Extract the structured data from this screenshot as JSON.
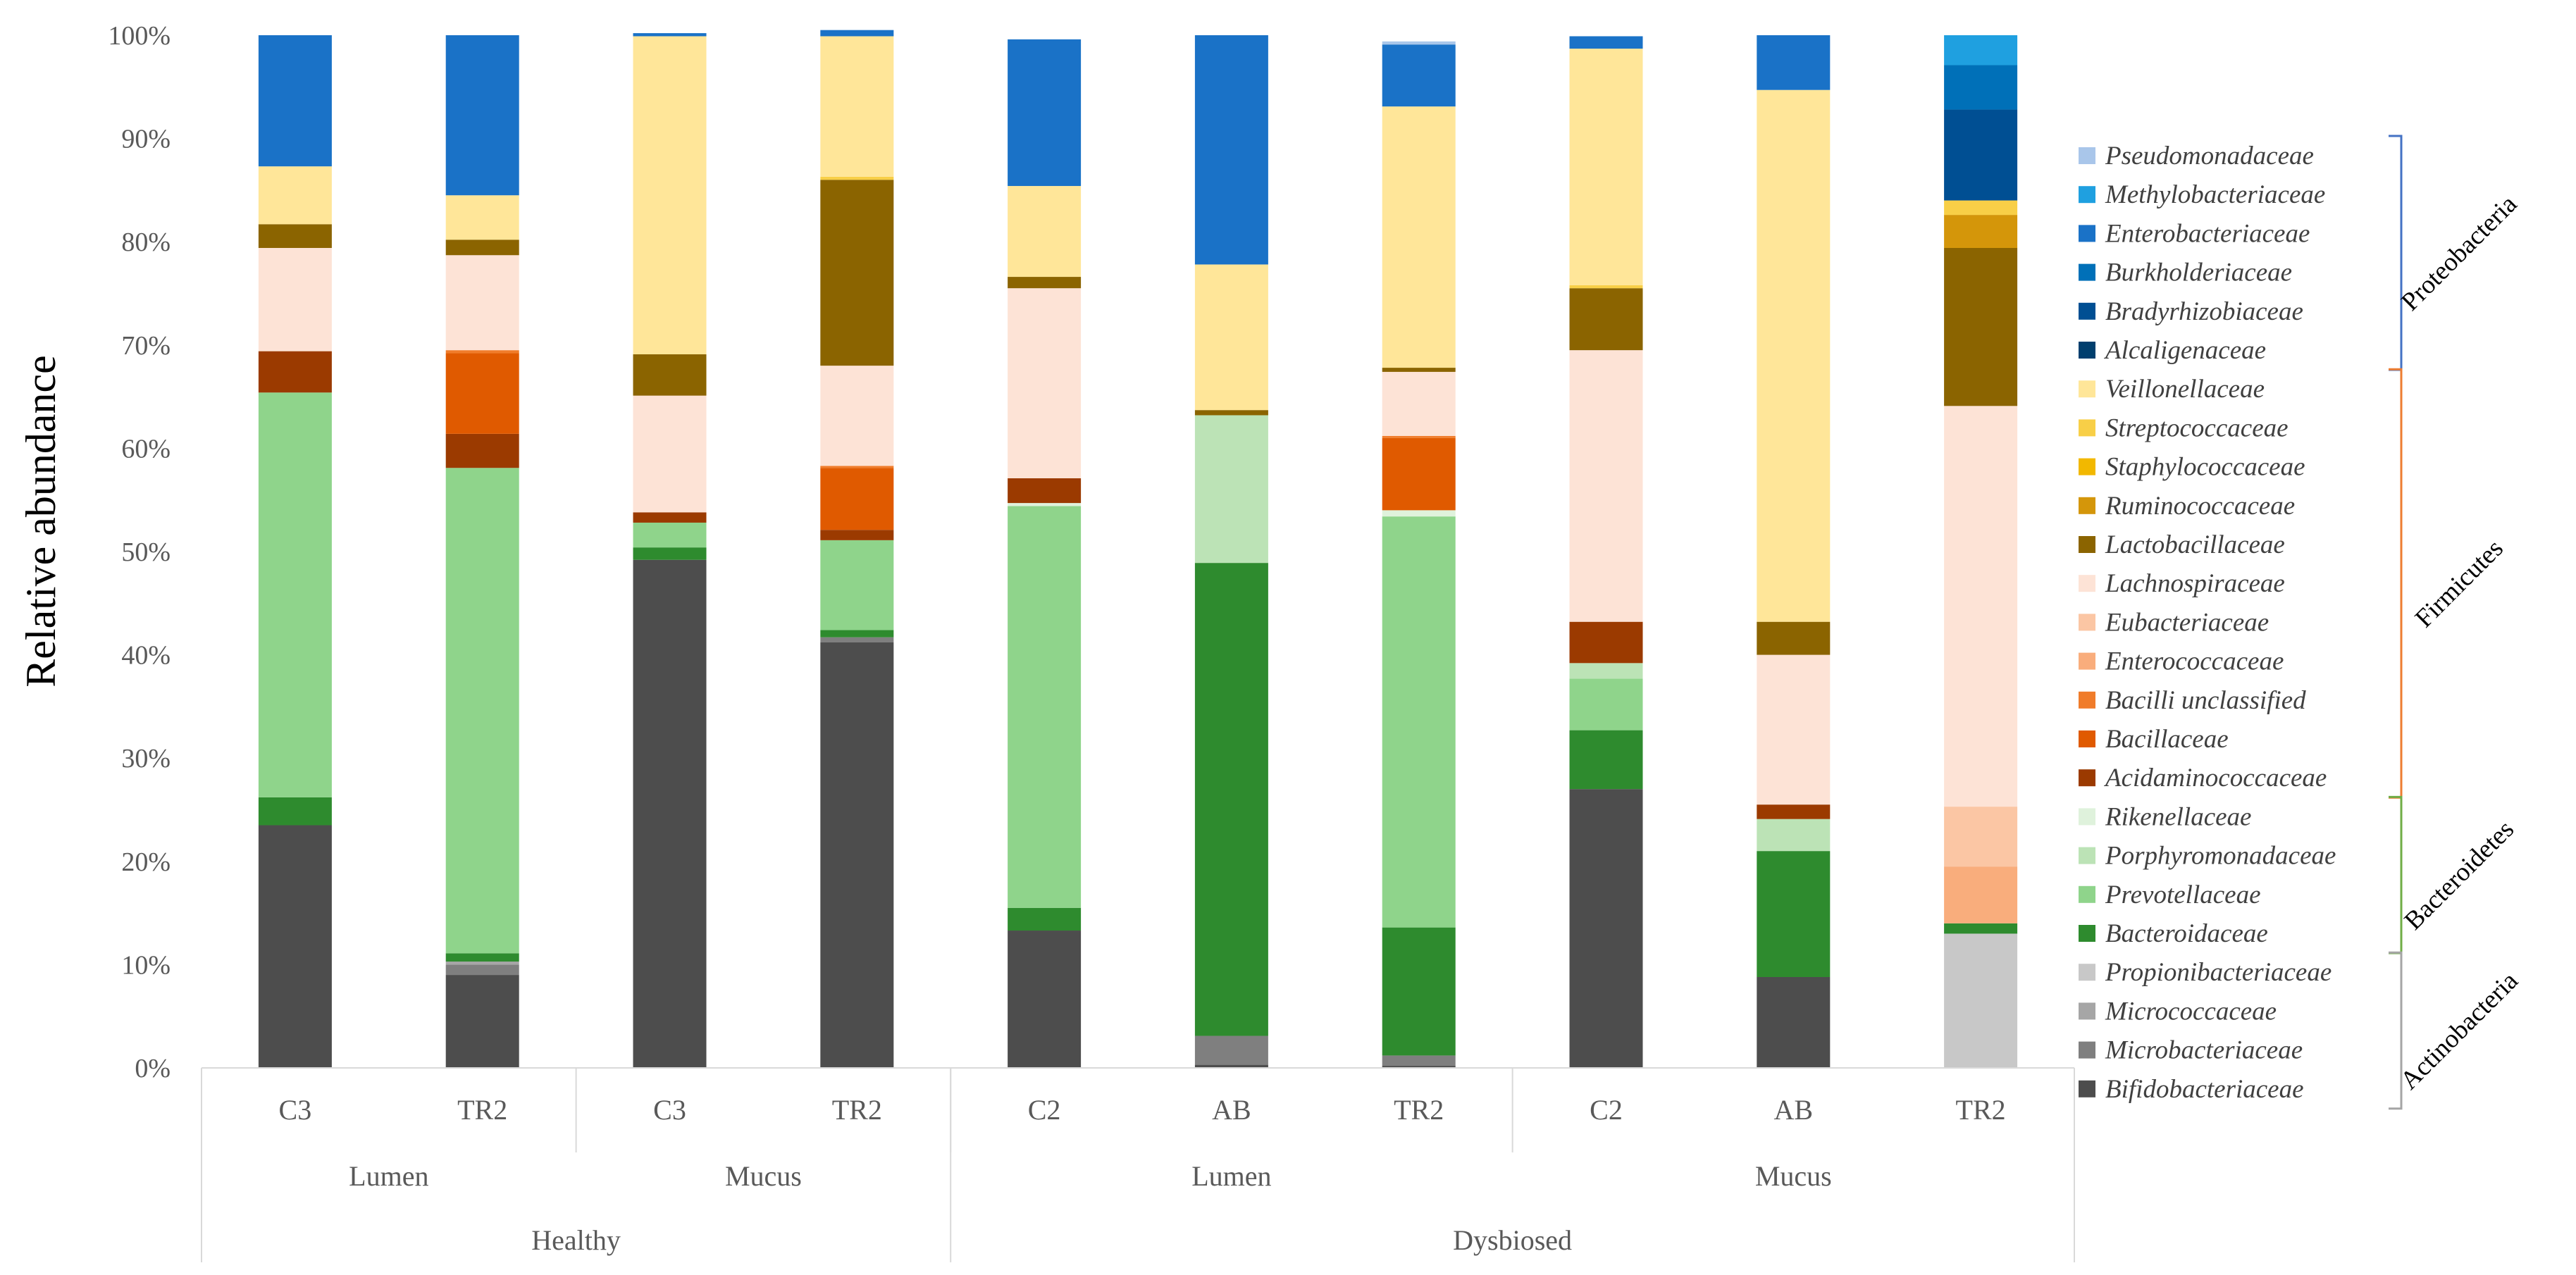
{
  "chart_data": {
    "type": "stacked-bar-100",
    "title": "",
    "ylabel": "Relative abundance",
    "xlabel": "",
    "ylim": [
      0,
      100
    ],
    "yticks": [
      "0%",
      "10%",
      "20%",
      "30%",
      "40%",
      "50%",
      "60%",
      "70%",
      "80%",
      "90%",
      "100%"
    ],
    "categories": [
      {
        "label": "C3",
        "site": "Lumen",
        "state": "Healthy"
      },
      {
        "label": "TR2",
        "site": "Lumen",
        "state": "Healthy"
      },
      {
        "label": "C3",
        "site": "Mucus",
        "state": "Healthy"
      },
      {
        "label": "TR2",
        "site": "Mucus",
        "state": "Healthy"
      },
      {
        "label": "C2",
        "site": "Lumen",
        "state": "Dysbiosed"
      },
      {
        "label": "AB",
        "site": "Lumen",
        "state": "Dysbiosed"
      },
      {
        "label": "TR2",
        "site": "Lumen",
        "state": "Dysbiosed"
      },
      {
        "label": "C2",
        "site": "Mucus",
        "state": "Dysbiosed"
      },
      {
        "label": "AB",
        "site": "Mucus",
        "state": "Dysbiosed"
      },
      {
        "label": "TR2",
        "site": "Mucus",
        "state": "Dysbiosed"
      }
    ],
    "group_level1": [
      {
        "label": "Lumen",
        "span": 2
      },
      {
        "label": "Mucus",
        "span": 2
      },
      {
        "label": "Lumen",
        "span": 3
      },
      {
        "label": "Mucus",
        "span": 3
      }
    ],
    "group_level2": [
      {
        "label": "Healthy",
        "span": 4
      },
      {
        "label": "Dysbiosed",
        "span": 6
      }
    ],
    "series": [
      {
        "name": "Bifidobacteriaceae",
        "color": "#4d4d4d",
        "values": [
          23.5,
          9.0,
          49.2,
          41.2,
          13.3,
          0.3,
          0.2,
          27.0,
          8.8,
          0.0
        ]
      },
      {
        "name": "Microbacteriaceae",
        "color": "#7f7f7f",
        "values": [
          0.0,
          1.0,
          0.0,
          0.5,
          0.0,
          2.8,
          1.0,
          0.0,
          0.0,
          0.0
        ]
      },
      {
        "name": "Micrococcaceae",
        "color": "#a6a6a6",
        "values": [
          0.0,
          0.3,
          0.0,
          0.0,
          0.0,
          0.0,
          0.0,
          0.0,
          0.0,
          0.0
        ]
      },
      {
        "name": "Propionibacteriaceae",
        "color": "#c8c8c8",
        "values": [
          0.0,
          0.0,
          0.0,
          0.0,
          0.0,
          0.0,
          0.0,
          0.0,
          0.0,
          13.0
        ]
      },
      {
        "name": "Bacteroidaceae",
        "color": "#2e8b2e",
        "values": [
          2.7,
          0.8,
          1.2,
          0.7,
          2.2,
          45.8,
          12.4,
          5.7,
          12.2,
          1.0
        ]
      },
      {
        "name": "Prevotellaceae",
        "color": "#8fd48b",
        "values": [
          39.2,
          47.0,
          2.4,
          8.7,
          38.9,
          0.0,
          39.8,
          5.0,
          0.0,
          0.0
        ]
      },
      {
        "name": "Porphyromonadaceae",
        "color": "#bce3b6",
        "values": [
          0.0,
          0.0,
          0.0,
          0.0,
          0.0,
          14.3,
          0.0,
          1.5,
          3.1,
          0.0
        ]
      },
      {
        "name": "Rikenellaceae",
        "color": "#dff2dc",
        "values": [
          0.0,
          0.0,
          0.0,
          0.0,
          0.3,
          0.0,
          0.6,
          0.0,
          0.0,
          0.0
        ]
      },
      {
        "name": "Acidaminococcaceae",
        "color": "#9b3a00",
        "values": [
          4.0,
          3.3,
          1.0,
          1.0,
          2.4,
          0.0,
          0.0,
          4.0,
          1.4,
          0.0
        ]
      },
      {
        "name": "Bacillaceae",
        "color": "#e05a00",
        "values": [
          0.0,
          7.8,
          0.0,
          6.0,
          0.0,
          0.0,
          7.0,
          0.0,
          0.0,
          0.0
        ]
      },
      {
        "name": "Bacilli unclassified",
        "color": "#f07c2a",
        "values": [
          0.0,
          0.3,
          0.0,
          0.2,
          0.0,
          0.0,
          0.2,
          0.0,
          0.0,
          0.0
        ]
      },
      {
        "name": "Enterococcaceae",
        "color": "#f9ad7c",
        "values": [
          0.0,
          0.0,
          0.0,
          0.0,
          0.0,
          0.0,
          0.0,
          0.0,
          0.0,
          5.5
        ]
      },
      {
        "name": "Eubacteriaceae",
        "color": "#fbc6a4",
        "values": [
          0.0,
          0.0,
          0.0,
          0.0,
          0.0,
          0.0,
          0.0,
          0.0,
          0.0,
          5.8
        ]
      },
      {
        "name": "Lachnospiraceae",
        "color": "#fde3d6",
        "values": [
          10.0,
          9.2,
          11.3,
          9.7,
          18.4,
          0.0,
          6.2,
          26.3,
          14.5,
          38.8
        ]
      },
      {
        "name": "Lactobacillaceae",
        "color": "#8b6400",
        "values": [
          2.3,
          1.5,
          4.0,
          18.0,
          1.1,
          0.5,
          0.4,
          6.0,
          3.2,
          15.3
        ]
      },
      {
        "name": "Ruminococcaceae",
        "color": "#d4960a",
        "values": [
          0.0,
          0.0,
          0.0,
          0.0,
          0.0,
          0.0,
          0.0,
          0.0,
          0.0,
          3.2
        ]
      },
      {
        "name": "Staphylococcaceae",
        "color": "#f2b800",
        "values": [
          0.0,
          0.0,
          0.0,
          0.0,
          0.0,
          0.0,
          0.0,
          0.0,
          0.0,
          0.0
        ]
      },
      {
        "name": "Streptococcaceae",
        "color": "#f8cf47",
        "values": [
          0.0,
          0.0,
          0.0,
          0.3,
          0.0,
          0.0,
          0.0,
          0.3,
          0.0,
          1.4
        ]
      },
      {
        "name": "Veillonellaceae",
        "color": "#ffe699",
        "values": [
          5.6,
          4.3,
          30.8,
          13.6,
          8.8,
          14.1,
          25.3,
          22.9,
          51.5,
          0.0
        ]
      },
      {
        "name": "Alcaligenaceae",
        "color": "#003f6e",
        "values": [
          0.0,
          0.0,
          0.0,
          0.0,
          0.0,
          0.0,
          0.0,
          0.0,
          0.0,
          0.0
        ]
      },
      {
        "name": "Bradyrhizobiaceae",
        "color": "#004f93",
        "values": [
          0.0,
          0.0,
          0.0,
          0.0,
          0.0,
          0.0,
          0.0,
          0.0,
          0.0,
          8.8
        ]
      },
      {
        "name": "Burkholderiaceae",
        "color": "#0070b8",
        "values": [
          0.0,
          0.0,
          0.0,
          0.0,
          0.0,
          0.0,
          0.0,
          0.0,
          0.0,
          4.3
        ]
      },
      {
        "name": "Enterobacteriaceae",
        "color": "#1a72c7",
        "values": [
          12.7,
          15.5,
          0.3,
          0.6,
          14.2,
          22.2,
          6.0,
          1.2,
          5.3,
          0.0
        ]
      },
      {
        "name": "Methylobacteriaceae",
        "color": "#1fa0e0",
        "values": [
          0.0,
          0.0,
          0.0,
          0.0,
          0.0,
          0.0,
          0.0,
          0.0,
          0.0,
          2.9
        ]
      },
      {
        "name": "Pseudomonadaceae",
        "color": "#a9c6ea",
        "values": [
          0.0,
          0.0,
          0.0,
          0.0,
          0.0,
          0.0,
          0.3,
          0.0,
          0.0,
          0.0
        ]
      }
    ],
    "legend_order": [
      "Pseudomonadaceae",
      "Methylobacteriaceae",
      "Enterobacteriaceae",
      "Burkholderiaceae",
      "Bradyrhizobiaceae",
      "Alcaligenaceae",
      "Veillonellaceae",
      "Streptococcaceae",
      "Staphylococcaceae",
      "Ruminococcaceae",
      "Lactobacillaceae",
      "Lachnospiraceae",
      "Eubacteriaceae",
      "Enterococcaceae",
      "Bacilli unclassified",
      "Bacillaceae",
      "Acidaminococcaceae",
      "Rikenellaceae",
      "Porphyromonadaceae",
      "Prevotellaceae",
      "Bacteroidaceae",
      "Propionibacteriaceae",
      "Micrococcaceae",
      "Microbacteriaceae",
      "Bifidobacteriaceae"
    ],
    "legend_placement": "right",
    "phyla": [
      {
        "name": "Proteobacteria",
        "color": "#4472c4",
        "from": "Pseudomonadaceae",
        "to": "Alcaligenaceae"
      },
      {
        "name": "Firmicutes",
        "color": "#ed7d31",
        "from": "Veillonellaceae",
        "to": "Acidaminococcaceae"
      },
      {
        "name": "Bacteroidetes",
        "color": "#70ad47",
        "from": "Rikenellaceae",
        "to": "Bacteroidaceae"
      },
      {
        "name": "Actinobacteria",
        "color": "#a5a5a5",
        "from": "Propionibacteriaceae",
        "to": "Bifidobacteriaceae"
      }
    ]
  }
}
